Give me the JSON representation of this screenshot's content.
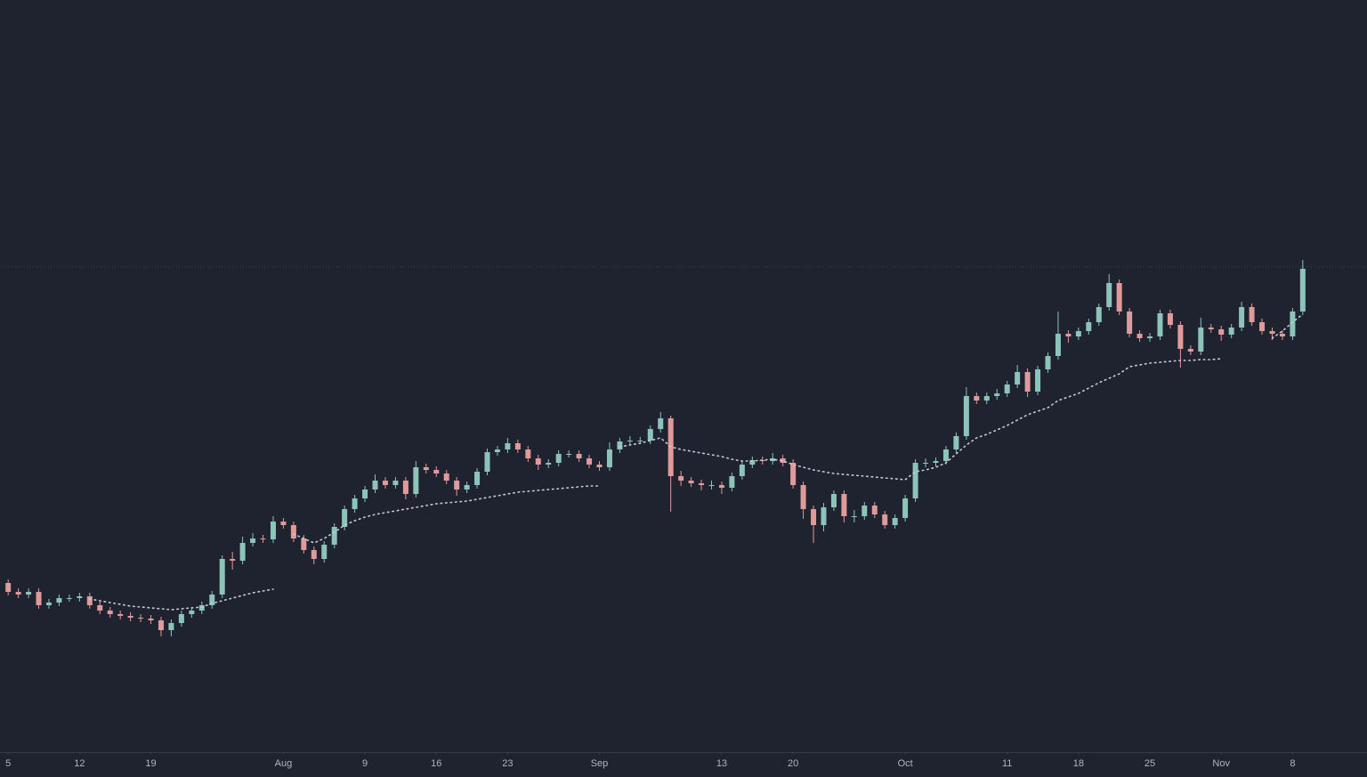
{
  "chart_data": {
    "type": "candlestick",
    "xlim": [
      -0.8,
      133.3
    ],
    "ylim": [
      0,
      845
    ],
    "xticks": [
      {
        "value": 0,
        "label": "5"
      },
      {
        "value": 7,
        "label": "12"
      },
      {
        "value": 14,
        "label": "19"
      },
      {
        "value": 27,
        "label": "Aug"
      },
      {
        "value": 35,
        "label": "9"
      },
      {
        "value": 42,
        "label": "16"
      },
      {
        "value": 49,
        "label": "23"
      },
      {
        "value": 58,
        "label": "Sep"
      },
      {
        "value": 70,
        "label": "13"
      },
      {
        "value": 77,
        "label": "20"
      },
      {
        "value": 88,
        "label": "Oct"
      },
      {
        "value": 98,
        "label": "11"
      },
      {
        "value": 105,
        "label": "18"
      },
      {
        "value": 112,
        "label": "25"
      },
      {
        "value": 119,
        "label": "Nov"
      },
      {
        "value": 126,
        "label": "8"
      }
    ],
    "up_color": "#8cc4ba",
    "down_color": "#e09a9a",
    "ma_color": "#c8cad2",
    "price_line": 545,
    "price_line_color": "#3b404d",
    "open": [
      190,
      180,
      177,
      180,
      165,
      168,
      173,
      173,
      175,
      165,
      159,
      155,
      153,
      151,
      150,
      148,
      137,
      145,
      155,
      159,
      165,
      177,
      217,
      215,
      235,
      240,
      239,
      259,
      255,
      240,
      227,
      217,
      233,
      253,
      273,
      285,
      295,
      305,
      300,
      305,
      290,
      320,
      317,
      313,
      305,
      295,
      300,
      315,
      337,
      340,
      347,
      340,
      330,
      323,
      325,
      335,
      335,
      330,
      323,
      320,
      340,
      349,
      350,
      350,
      363,
      375,
      310,
      305,
      302,
      300,
      300,
      297,
      310,
      323,
      328,
      327,
      330,
      325,
      300,
      273,
      255,
      275,
      290,
      265,
      265,
      277,
      267,
      255,
      263,
      285,
      325,
      325,
      327,
      340,
      355,
      400,
      395,
      400,
      403,
      413,
      427,
      405,
      430,
      445,
      470,
      467,
      473,
      483,
      500,
      527,
      495,
      470,
      465,
      467,
      493,
      480,
      453,
      450,
      477,
      475,
      469,
      477,
      500,
      483,
      473,
      470,
      467,
      495
    ],
    "high": [
      194,
      184,
      184,
      184,
      172,
      177,
      177,
      179,
      179,
      169,
      163,
      159,
      157,
      155,
      154,
      152,
      149,
      159,
      163,
      169,
      181,
      221,
      225,
      242,
      246,
      244,
      265,
      263,
      259,
      244,
      231,
      237,
      257,
      277,
      289,
      299,
      312,
      309,
      309,
      309,
      327,
      324,
      321,
      317,
      309,
      304,
      319,
      341,
      344,
      353,
      351,
      344,
      334,
      329,
      339,
      339,
      339,
      334,
      327,
      348,
      353,
      355,
      354,
      367,
      382,
      378,
      316,
      309,
      306,
      305,
      304,
      314,
      327,
      332,
      332,
      336,
      334,
      329,
      304,
      277,
      280,
      294,
      294,
      272,
      281,
      281,
      271,
      267,
      289,
      329,
      330,
      331,
      344,
      359,
      410,
      404,
      404,
      408,
      417,
      435,
      431,
      434,
      449,
      495,
      474,
      477,
      487,
      504,
      537,
      531,
      499,
      474,
      471,
      497,
      497,
      484,
      457,
      488,
      481,
      479,
      481,
      506,
      504,
      487,
      477,
      474,
      499,
      553
    ],
    "low": [
      176,
      173,
      173,
      161,
      161,
      164,
      169,
      169,
      161,
      155,
      151,
      149,
      147,
      146,
      144,
      130,
      130,
      141,
      151,
      155,
      161,
      173,
      205,
      211,
      231,
      235,
      235,
      251,
      236,
      223,
      211,
      213,
      229,
      249,
      269,
      281,
      291,
      296,
      296,
      284,
      286,
      313,
      309,
      301,
      288,
      291,
      296,
      311,
      333,
      336,
      336,
      326,
      317,
      319,
      321,
      331,
      326,
      319,
      316,
      316,
      336,
      345,
      346,
      346,
      359,
      270,
      299,
      298,
      294,
      295,
      290,
      293,
      306,
      319,
      323,
      323,
      321,
      296,
      262,
      235,
      248,
      271,
      258,
      258,
      261,
      263,
      251,
      251,
      259,
      281,
      320,
      321,
      323,
      336,
      351,
      391,
      391,
      396,
      399,
      409,
      399,
      401,
      426,
      441,
      460,
      463,
      469,
      479,
      496,
      491,
      466,
      461,
      461,
      463,
      476,
      432,
      446,
      446,
      471,
      462,
      465,
      473,
      479,
      469,
      463,
      463,
      463,
      491
    ],
    "close": [
      180,
      177,
      180,
      165,
      168,
      173,
      173,
      175,
      165,
      159,
      155,
      153,
      151,
      150,
      148,
      137,
      145,
      155,
      159,
      165,
      177,
      217,
      215,
      235,
      240,
      239,
      259,
      255,
      240,
      227,
      217,
      233,
      253,
      273,
      285,
      295,
      305,
      300,
      305,
      290,
      320,
      317,
      313,
      305,
      295,
      300,
      315,
      337,
      340,
      347,
      340,
      330,
      323,
      325,
      335,
      335,
      330,
      323,
      320,
      340,
      349,
      350,
      350,
      363,
      375,
      310,
      305,
      302,
      300,
      300,
      297,
      310,
      323,
      328,
      327,
      330,
      325,
      300,
      273,
      255,
      275,
      290,
      265,
      265,
      277,
      267,
      255,
      263,
      285,
      325,
      325,
      327,
      340,
      355,
      400,
      395,
      400,
      403,
      413,
      427,
      405,
      430,
      445,
      470,
      467,
      473,
      483,
      500,
      527,
      495,
      470,
      465,
      467,
      493,
      480,
      453,
      450,
      477,
      475,
      469,
      477,
      500,
      483,
      473,
      470,
      467,
      495,
      543
    ],
    "ma": [
      null,
      null,
      null,
      null,
      null,
      null,
      null,
      null,
      172,
      170,
      168,
      166,
      164,
      163,
      162,
      161,
      160,
      161,
      162,
      163,
      167,
      170,
      173,
      176,
      179,
      181,
      183,
      null,
      245,
      240,
      235,
      240,
      247,
      255,
      260,
      264,
      267,
      269,
      271,
      273,
      275,
      277,
      279,
      280,
      281,
      282,
      284,
      286,
      288,
      290,
      292,
      293,
      294,
      295,
      296,
      297,
      298,
      299,
      299,
      null,
      343,
      345,
      347,
      350,
      353,
      343,
      340,
      338,
      336,
      334,
      332,
      329,
      327,
      327,
      328,
      329,
      327,
      323,
      320,
      317,
      315,
      313,
      312,
      311,
      310,
      309,
      308,
      307,
      306,
      315,
      317,
      320,
      325,
      335,
      345,
      353,
      357,
      362,
      367,
      373,
      379,
      383,
      387,
      395,
      399,
      403,
      409,
      415,
      420,
      425,
      433,
      435,
      437,
      438,
      439,
      440,
      440,
      441,
      441,
      442,
      null,
      null,
      null,
      null,
      465,
      473,
      483,
      492
    ]
  }
}
